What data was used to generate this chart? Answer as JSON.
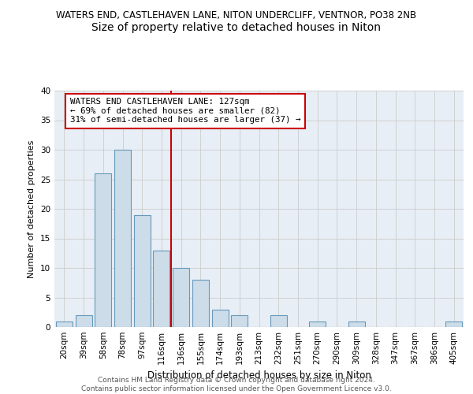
{
  "title": "WATERS END, CASTLEHAVEN LANE, NITON UNDERCLIFF, VENTNOR, PO38 2NB",
  "subtitle": "Size of property relative to detached houses in Niton",
  "xlabel": "Distribution of detached houses by size in Niton",
  "ylabel": "Number of detached properties",
  "bar_labels": [
    "20sqm",
    "39sqm",
    "58sqm",
    "78sqm",
    "97sqm",
    "116sqm",
    "136sqm",
    "155sqm",
    "174sqm",
    "193sqm",
    "213sqm",
    "232sqm",
    "251sqm",
    "270sqm",
    "290sqm",
    "309sqm",
    "328sqm",
    "347sqm",
    "367sqm",
    "386sqm",
    "405sqm"
  ],
  "bar_values": [
    1,
    2,
    26,
    30,
    19,
    13,
    10,
    8,
    3,
    2,
    0,
    2,
    0,
    1,
    0,
    1,
    0,
    0,
    0,
    0,
    1
  ],
  "bar_color": "#ccdce8",
  "bar_edge_color": "#6699bb",
  "red_line_x": 5.5,
  "annotation_text_line1": "WATERS END CASTLEHAVEN LANE: 127sqm",
  "annotation_text_line2": "← 69% of detached houses are smaller (82)",
  "annotation_text_line3": "31% of semi-detached houses are larger (37) →",
  "annotation_box_facecolor": "#ffffff",
  "annotation_box_edgecolor": "#cc0000",
  "red_line_color": "#cc0000",
  "ylim": [
    0,
    40
  ],
  "yticks": [
    0,
    5,
    10,
    15,
    20,
    25,
    30,
    35,
    40
  ],
  "grid_color": "#cccccc",
  "bg_color": "#e8eef5",
  "footer_line1": "Contains HM Land Registry data © Crown copyright and database right 2024.",
  "footer_line2": "Contains public sector information licensed under the Open Government Licence v3.0.",
  "title_fontsize": 8.5,
  "subtitle_fontsize": 10,
  "annotation_fontsize": 7.8,
  "axis_label_fontsize": 8,
  "tick_fontsize": 7.5,
  "footer_fontsize": 6.5
}
